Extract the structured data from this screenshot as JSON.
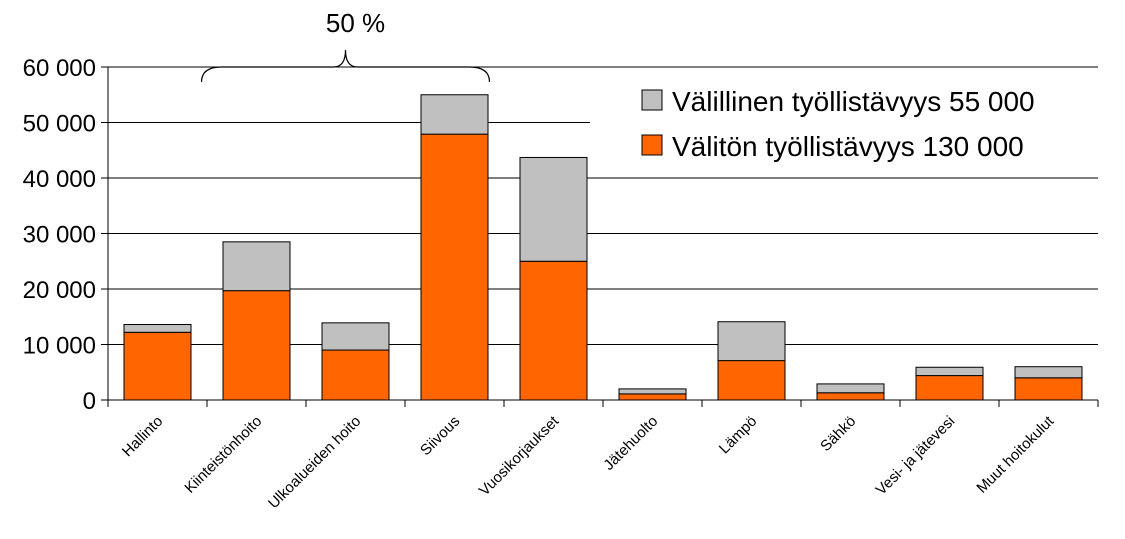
{
  "chart_data": {
    "type": "bar",
    "stacked": true,
    "categories": [
      "Hallinto",
      "Kiinteistönhoito",
      "Ulkoalueiden hoito",
      "Siivous",
      "Vuosikorjaukset",
      "Jätehuolto",
      "Lämpö",
      "Sähkö",
      "Vesi- ja jätevesi",
      "Muut hoitokulut"
    ],
    "series": [
      {
        "name": "Välitön työllistävyys 130 000",
        "color": "#FF6600",
        "values": [
          12200,
          19700,
          9000,
          47900,
          25000,
          1100,
          7100,
          1300,
          4400,
          4000
        ]
      },
      {
        "name": "Välillinen työllistävyys 55 000",
        "color": "#C0C0C0",
        "values": [
          1400,
          8800,
          4900,
          7100,
          18700,
          900,
          7000,
          1600,
          1500,
          2000
        ]
      }
    ],
    "ylim": [
      0,
      60000
    ],
    "yticks": [
      0,
      10000,
      20000,
      30000,
      40000,
      50000,
      60000
    ],
    "ytick_labels": [
      "0",
      "10 000",
      "20 000",
      "30 000",
      "40 000",
      "50 000",
      "60 000"
    ],
    "grid": true,
    "legend_position": "top-right",
    "annotation": {
      "text": "50 %",
      "spans": [
        "Kiinteistönhoito",
        "Siivous"
      ]
    }
  }
}
